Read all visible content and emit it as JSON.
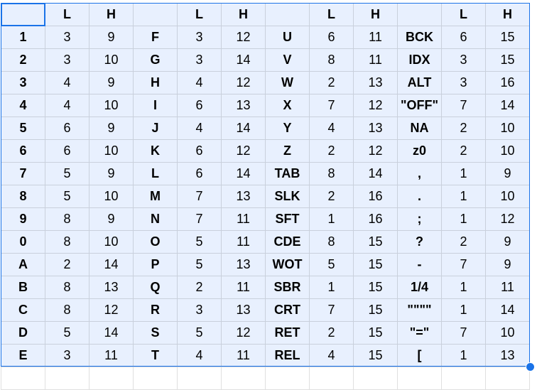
{
  "colors": {
    "selection_fill": "#e8f0fe",
    "selection_border": "#1a73e8",
    "gridline": "#c9d0dc"
  },
  "rows": [
    [
      "",
      "L",
      "H",
      "",
      "L",
      "H",
      "",
      "L",
      "H",
      "",
      "L",
      "H"
    ],
    [
      "1",
      "3",
      "9",
      "F",
      "3",
      "12",
      "U",
      "6",
      "11",
      "BCK",
      "6",
      "15"
    ],
    [
      "2",
      "3",
      "10",
      "G",
      "3",
      "14",
      "V",
      "8",
      "11",
      "IDX",
      "3",
      "15"
    ],
    [
      "3",
      "4",
      "9",
      "H",
      "4",
      "12",
      "W",
      "2",
      "13",
      "ALT",
      "3",
      "16"
    ],
    [
      "4",
      "4",
      "10",
      "I",
      "6",
      "13",
      "X",
      "7",
      "12",
      "\"OFF\"",
      "7",
      "14"
    ],
    [
      "5",
      "6",
      "9",
      "J",
      "4",
      "14",
      "Y",
      "4",
      "13",
      "NA",
      "2",
      "10"
    ],
    [
      "6",
      "6",
      "10",
      "K",
      "6",
      "12",
      "Z",
      "2",
      "12",
      "z0",
      "2",
      "10"
    ],
    [
      "7",
      "5",
      "9",
      "L",
      "6",
      "14",
      "TAB",
      "8",
      "14",
      ",",
      "1",
      "9"
    ],
    [
      "8",
      "5",
      "10",
      "M",
      "7",
      "13",
      "SLK",
      "2",
      "16",
      ".",
      "1",
      "10"
    ],
    [
      "9",
      "8",
      "9",
      "N",
      "7",
      "11",
      "SFT",
      "1",
      "16",
      ";",
      "1",
      "12"
    ],
    [
      "0",
      "8",
      "10",
      "O",
      "5",
      "11",
      "CDE",
      "8",
      "15",
      "?",
      "2",
      "9"
    ],
    [
      "A",
      "2",
      "14",
      "P",
      "5",
      "13",
      "WOT",
      "5",
      "15",
      "-",
      "7",
      "9"
    ],
    [
      "B",
      "8",
      "13",
      "Q",
      "2",
      "11",
      "SBR",
      "1",
      "15",
      "1/4",
      "1",
      "11"
    ],
    [
      "C",
      "8",
      "12",
      "R",
      "3",
      "13",
      "CRT",
      "7",
      "15",
      "\"\"\"\"",
      "1",
      "14"
    ],
    [
      "D",
      "5",
      "14",
      "S",
      "5",
      "12",
      "RET",
      "2",
      "15",
      "\"=\"",
      "7",
      "10"
    ],
    [
      "E",
      "3",
      "11",
      "T",
      "4",
      "11",
      "REL",
      "4",
      "15",
      "[",
      "1",
      "13"
    ]
  ]
}
